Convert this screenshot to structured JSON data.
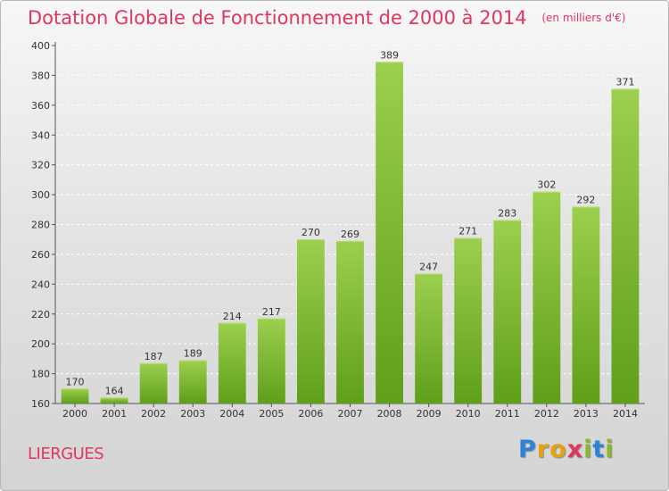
{
  "title": "Dotation Globale de Fonctionnement de 2000 à 2014",
  "unit": "(en milliers d'€)",
  "commune": "LIERGUES",
  "logo": {
    "letters": [
      "P",
      "r",
      "o",
      "x",
      "i",
      "t",
      "i"
    ]
  },
  "colors": {
    "title": "#e0365f",
    "bar_top": "#9ccf4e",
    "bar_bottom": "#5f9f1a"
  },
  "chart_data": {
    "type": "bar",
    "categories": [
      "2000",
      "2001",
      "2002",
      "2003",
      "2004",
      "2005",
      "2006",
      "2007",
      "2008",
      "2009",
      "2010",
      "2011",
      "2012",
      "2013",
      "2014"
    ],
    "values": [
      170,
      164,
      187,
      189,
      214,
      217,
      270,
      269,
      389,
      247,
      271,
      283,
      302,
      292,
      371
    ],
    "ylim": [
      160,
      400
    ],
    "yticks": [
      160,
      180,
      200,
      220,
      240,
      260,
      280,
      300,
      320,
      340,
      360,
      380,
      400
    ],
    "grid": true
  }
}
